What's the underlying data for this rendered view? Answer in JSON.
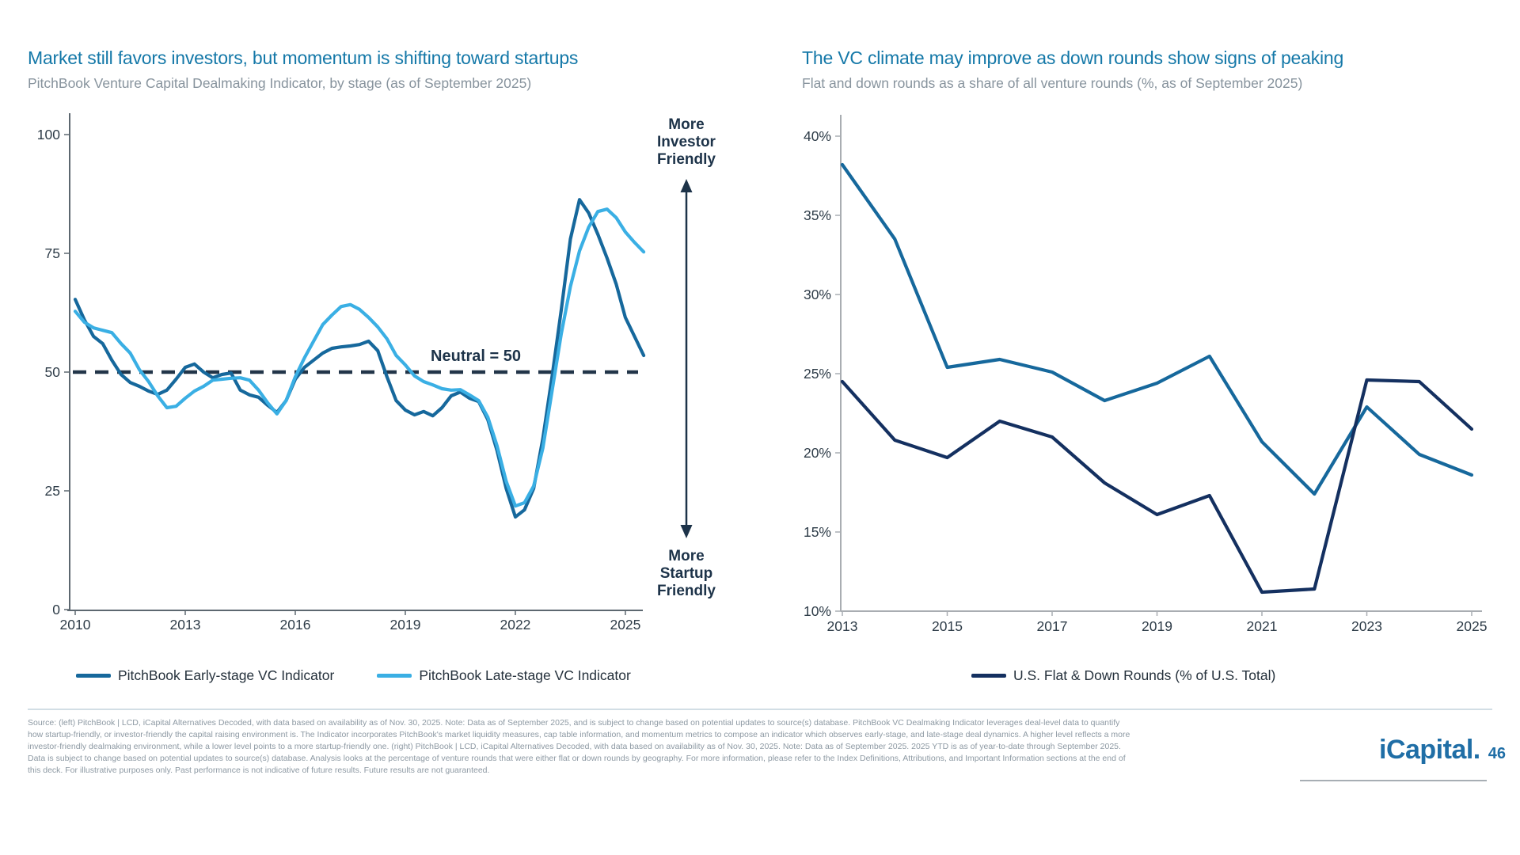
{
  "slide": {
    "logo_text": "iCapital.",
    "page_number": "46",
    "footer_lines": [
      "Source: (left) PitchBook | LCD, iCapital Alternatives Decoded, with data based on availability as of Nov. 30, 2025. Note: Data as of September 2025, and is subject to change based on potential updates to source(s) database. PitchBook VC Dealmaking Indicator leverages deal-level data to quantify",
      "how startup-friendly, or investor-friendly the capital raising environment is. The Indicator incorporates PitchBook's market liquidity measures, cap table information, and momentum metrics to compose an indicator which observes early-stage, and late-stage deal dynamics. A higher level reflects a more",
      "investor-friendly dealmaking environment, while a lower level points to a more startup-friendly one. (right) PitchBook | LCD, iCapital Alternatives Decoded, with data based on availability as of Nov. 30, 2025. Note: Data as of September 2025. 2025 YTD is as of year-to-date through September 2025.",
      "Data is subject to change based on potential updates to source(s) database. Analysis looks at the percentage of venture rounds that were either flat or down rounds by geography. For more information, please refer to the Index Definitions, Attributions, and Important Information sections at the end of",
      "this deck. For illustrative purposes only. Past performance is not indicative of future results. Future results are not guaranteed."
    ]
  },
  "left_chart": {
    "title": "Market still favors investors, but momentum is shifting toward startups",
    "subtitle": "PitchBook Venture Capital Dealmaking Indicator, by stage (as of September 2025)",
    "neutral_label": "Neutral = 50",
    "arrow_top_label": "More\nInvestor\nFriendly",
    "arrow_bottom_label": "More\nStartup\nFriendly",
    "legend": [
      {
        "label": "PitchBook Early-stage VC Indicator",
        "color": "#16689c"
      },
      {
        "label": "PitchBook Late-stage VC Indicator",
        "color": "#3aafe4"
      }
    ]
  },
  "right_chart": {
    "title": "The VC climate may improve as down rounds show signs of peaking",
    "subtitle": "Flat and down rounds as a share of all venture rounds (%, as of September 2025)",
    "legend": [
      {
        "label": "U.S. Flat & Down Rounds (% of U.S. Total)",
        "color": "#143060"
      }
    ]
  },
  "chart_data": [
    {
      "type": "line",
      "title": "PitchBook Venture Capital Dealmaking Indicator, by stage",
      "xlabel": "",
      "ylabel": "",
      "ylim": [
        0,
        100
      ],
      "xlim": [
        2010,
        2025.5
      ],
      "grid": false,
      "legend_position": "bottom",
      "annotations": [
        "Neutral = 50",
        "More Investor Friendly",
        "More Startup Friendly"
      ],
      "y_axis": {
        "ticks": [
          {
            "label": "100",
            "value": 100
          },
          {
            "label": "75",
            "value": 75
          },
          {
            "label": "50",
            "value": 50
          },
          {
            "label": "25",
            "value": 25
          },
          {
            "label": "0",
            "value": 0
          }
        ]
      },
      "x_axis": {
        "ticks": [
          {
            "label": "2010",
            "year": 2010
          },
          {
            "label": "2013",
            "year": 2013
          },
          {
            "label": "2016",
            "year": 2016
          },
          {
            "label": "2019",
            "year": 2019
          },
          {
            "label": "2022",
            "year": 2022
          },
          {
            "label": "2025",
            "year": 2025
          }
        ]
      },
      "neutral_line_value": 50,
      "series": [
        {
          "key": "early-stage",
          "name": "PitchBook Early-stage VC Indicator",
          "color": "#16689c",
          "points": [
            [
              2010,
              65.3
            ],
            [
              2010.25,
              61
            ],
            [
              2010.5,
              57.5
            ],
            [
              2010.75,
              56
            ],
            [
              2011,
              52.5
            ],
            [
              2011.25,
              49.5
            ],
            [
              2011.5,
              47.8
            ],
            [
              2011.75,
              47
            ],
            [
              2012,
              46
            ],
            [
              2012.25,
              45.3
            ],
            [
              2012.5,
              46.2
            ],
            [
              2012.75,
              48.5
            ],
            [
              2013,
              51
            ],
            [
              2013.25,
              51.7
            ],
            [
              2013.5,
              50
            ],
            [
              2013.75,
              48.8
            ],
            [
              2014,
              49.5
            ],
            [
              2014.25,
              49.8
            ],
            [
              2014.5,
              46.2
            ],
            [
              2014.75,
              45.2
            ],
            [
              2015,
              44.7
            ],
            [
              2015.25,
              43
            ],
            [
              2015.5,
              41.5
            ],
            [
              2015.75,
              44
            ],
            [
              2016,
              48.5
            ],
            [
              2016.25,
              51
            ],
            [
              2016.5,
              52.5
            ],
            [
              2016.75,
              54
            ],
            [
              2017,
              55
            ],
            [
              2017.25,
              55.3
            ],
            [
              2017.5,
              55.5
            ],
            [
              2017.75,
              55.8
            ],
            [
              2018,
              56.5
            ],
            [
              2018.25,
              54.5
            ],
            [
              2018.5,
              49
            ],
            [
              2018.75,
              44
            ],
            [
              2019,
              42
            ],
            [
              2019.25,
              41
            ],
            [
              2019.5,
              41.7
            ],
            [
              2019.75,
              40.8
            ],
            [
              2020,
              42.5
            ],
            [
              2020.25,
              45
            ],
            [
              2020.5,
              45.8
            ],
            [
              2020.75,
              44.5
            ],
            [
              2021,
              43.8
            ],
            [
              2021.25,
              40
            ],
            [
              2021.5,
              33.5
            ],
            [
              2021.75,
              25.5
            ],
            [
              2022,
              19.5
            ],
            [
              2022.25,
              21
            ],
            [
              2022.5,
              25.5
            ],
            [
              2022.75,
              36
            ],
            [
              2023,
              49
            ],
            [
              2023.25,
              63
            ],
            [
              2023.5,
              78
            ],
            [
              2023.75,
              86.3
            ],
            [
              2024,
              83.5
            ],
            [
              2024.25,
              79
            ],
            [
              2024.5,
              74
            ],
            [
              2024.75,
              68.5
            ],
            [
              2025,
              61.5
            ],
            [
              2025.25,
              57.5
            ],
            [
              2025.5,
              53.5
            ]
          ]
        },
        {
          "key": "late-stage",
          "name": "PitchBook Late-stage VC Indicator",
          "color": "#3aafe4",
          "points": [
            [
              2010,
              62.8
            ],
            [
              2010.25,
              60.5
            ],
            [
              2010.5,
              59.3
            ],
            [
              2010.75,
              58.8
            ],
            [
              2011,
              58.3
            ],
            [
              2011.25,
              56
            ],
            [
              2011.5,
              54
            ],
            [
              2011.75,
              50.5
            ],
            [
              2012,
              48
            ],
            [
              2012.25,
              45
            ],
            [
              2012.5,
              42.5
            ],
            [
              2012.75,
              42.8
            ],
            [
              2013,
              44.5
            ],
            [
              2013.25,
              46
            ],
            [
              2013.5,
              47
            ],
            [
              2013.75,
              48.3
            ],
            [
              2014,
              48.5
            ],
            [
              2014.25,
              48.7
            ],
            [
              2014.5,
              48.8
            ],
            [
              2014.75,
              48.3
            ],
            [
              2015,
              46.2
            ],
            [
              2015.25,
              43.5
            ],
            [
              2015.5,
              41.2
            ],
            [
              2015.75,
              44
            ],
            [
              2016,
              49
            ],
            [
              2016.25,
              53
            ],
            [
              2016.5,
              56.5
            ],
            [
              2016.75,
              60
            ],
            [
              2017,
              62
            ],
            [
              2017.25,
              63.8
            ],
            [
              2017.5,
              64.2
            ],
            [
              2017.75,
              63.2
            ],
            [
              2018,
              61.5
            ],
            [
              2018.25,
              59.5
            ],
            [
              2018.5,
              57
            ],
            [
              2018.75,
              53.5
            ],
            [
              2019,
              51.5
            ],
            [
              2019.25,
              49.2
            ],
            [
              2019.5,
              48
            ],
            [
              2019.75,
              47.3
            ],
            [
              2020,
              46.5
            ],
            [
              2020.25,
              46.2
            ],
            [
              2020.5,
              46.3
            ],
            [
              2020.75,
              45.2
            ],
            [
              2021,
              44
            ],
            [
              2021.25,
              40.5
            ],
            [
              2021.5,
              34.5
            ],
            [
              2021.75,
              27
            ],
            [
              2022,
              21.8
            ],
            [
              2022.25,
              22.5
            ],
            [
              2022.5,
              26
            ],
            [
              2022.75,
              34
            ],
            [
              2023,
              46
            ],
            [
              2023.25,
              58
            ],
            [
              2023.5,
              68
            ],
            [
              2023.75,
              75.5
            ],
            [
              2024,
              80.5
            ],
            [
              2024.25,
              83.8
            ],
            [
              2024.5,
              84.3
            ],
            [
              2024.75,
              82.5
            ],
            [
              2025,
              79.5
            ],
            [
              2025.25,
              77.3
            ],
            [
              2025.5,
              75.3
            ]
          ]
        }
      ]
    },
    {
      "type": "line",
      "title": "Flat and down rounds as a share of all venture rounds (%)",
      "xlabel": "",
      "ylabel": "",
      "ylim": [
        10,
        40
      ],
      "xlim": [
        2013,
        2025
      ],
      "grid": false,
      "legend_position": "bottom",
      "y_axis": {
        "ticks": [
          {
            "label": "40%",
            "value": 40
          },
          {
            "label": "35%",
            "value": 35
          },
          {
            "label": "30%",
            "value": 30
          },
          {
            "label": "25%",
            "value": 25
          },
          {
            "label": "20%",
            "value": 20
          },
          {
            "label": "15%",
            "value": 15
          },
          {
            "label": "10%",
            "value": 10
          }
        ]
      },
      "x_axis": {
        "ticks": [
          {
            "label": "2013",
            "year": 2013
          },
          {
            "label": "2015",
            "year": 2015
          },
          {
            "label": "2017",
            "year": 2017
          },
          {
            "label": "2019",
            "year": 2019
          },
          {
            "label": "2021",
            "year": 2021
          },
          {
            "label": "2023",
            "year": 2023
          },
          {
            "label": "2025",
            "year": 2025
          }
        ]
      },
      "series": [
        {
          "key": "unlabeled-blue",
          "name": "",
          "color": "#16689c",
          "points": [
            [
              2013,
              38.2
            ],
            [
              2014,
              33.5
            ],
            [
              2015,
              25.4
            ],
            [
              2016,
              25.9
            ],
            [
              2017,
              25.1
            ],
            [
              2018,
              23.3
            ],
            [
              2019,
              24.4
            ],
            [
              2020,
              26.1
            ],
            [
              2021,
              20.7
            ],
            [
              2022,
              17.4
            ],
            [
              2023,
              22.9
            ],
            [
              2024,
              19.9
            ],
            [
              2025,
              18.6
            ]
          ]
        },
        {
          "key": "us-flat-down",
          "name": "U.S. Flat & Down Rounds (% of U.S. Total)",
          "color": "#143060",
          "points": [
            [
              2013,
              24.5
            ],
            [
              2014,
              20.8
            ],
            [
              2015,
              19.7
            ],
            [
              2016,
              22
            ],
            [
              2017,
              21
            ],
            [
              2018,
              18.1
            ],
            [
              2019,
              16.1
            ],
            [
              2020,
              17.3
            ],
            [
              2021,
              11.2
            ],
            [
              2022,
              11.4
            ],
            [
              2023,
              24.6
            ],
            [
              2024,
              24.5
            ],
            [
              2025,
              21.5
            ]
          ]
        }
      ]
    }
  ]
}
